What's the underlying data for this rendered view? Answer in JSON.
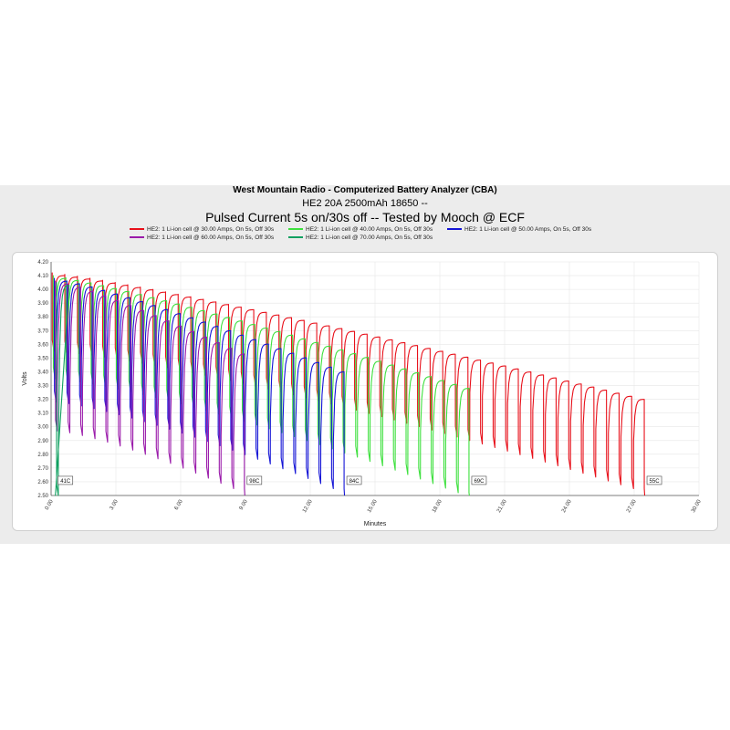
{
  "chart_data": {
    "type": "line",
    "title": "West Mountain Radio - Computerized Battery Analyzer (CBA)",
    "subtitle": "HE2 20A 2500mAh 18650 --",
    "subtitle2": "Pulsed Current 5s on/30s off -- Tested by Mooch @ ECF",
    "xlabel": "Minutes",
    "ylabel": "Volts",
    "xlim": [
      0,
      30
    ],
    "ylim": [
      2.5,
      4.2
    ],
    "x_ticks": [
      "0.00",
      "3.00",
      "6.00",
      "9.00",
      "12.00",
      "15.00",
      "18.00",
      "21.00",
      "24.00",
      "27.00",
      "30.00"
    ],
    "y_ticks": [
      "2.50",
      "2.60",
      "2.70",
      "2.80",
      "2.90",
      "3.00",
      "3.10",
      "3.20",
      "3.30",
      "3.40",
      "3.50",
      "3.60",
      "3.70",
      "3.80",
      "3.90",
      "4.00",
      "4.10",
      "4.20"
    ],
    "grid": true,
    "legend_position": "top",
    "series": [
      {
        "name": "HE2: 1 Li-ion cell @ 30.00 Amps, On 5s, Off 30s",
        "color": "#e8101a",
        "end_minutes": 27.8,
        "start_rest_v": 4.12,
        "end_rest_v": 3.22,
        "start_load_v": 3.55,
        "end_load_v": 2.55,
        "end_temp": "55C"
      },
      {
        "name": "HE2: 1 Li-ion cell @ 40.00 Amps, On 5s, Off 30s",
        "color": "#3ee03e",
        "end_minutes": 19.6,
        "start_rest_v": 4.1,
        "end_rest_v": 3.3,
        "start_load_v": 3.35,
        "end_load_v": 2.52,
        "end_temp": "69C"
      },
      {
        "name": "HE2: 1 Li-ion cell @ 50.00 Amps, On 5s, Off 30s",
        "color": "#1414d6",
        "end_minutes": 13.9,
        "start_rest_v": 4.08,
        "end_rest_v": 3.42,
        "start_load_v": 3.18,
        "end_load_v": 2.55,
        "end_temp": "84C"
      },
      {
        "name": "HE2: 1 Li-ion cell @ 60.00 Amps, On 5s, Off 30s",
        "color": "#9a1aaa",
        "end_minutes": 9.1,
        "start_rest_v": 4.06,
        "end_rest_v": 3.55,
        "start_load_v": 2.97,
        "end_load_v": 2.55,
        "end_temp": "98C"
      },
      {
        "name": "HE2: 1 Li-ion cell @ 70.00 Amps, On 5s, Off 30s",
        "color": "#10a060",
        "end_minutes": 0.2,
        "start_rest_v": 4.05,
        "end_rest_v": 4.05,
        "start_load_v": 2.5,
        "end_load_v": 2.5,
        "end_temp": "41C"
      }
    ]
  }
}
